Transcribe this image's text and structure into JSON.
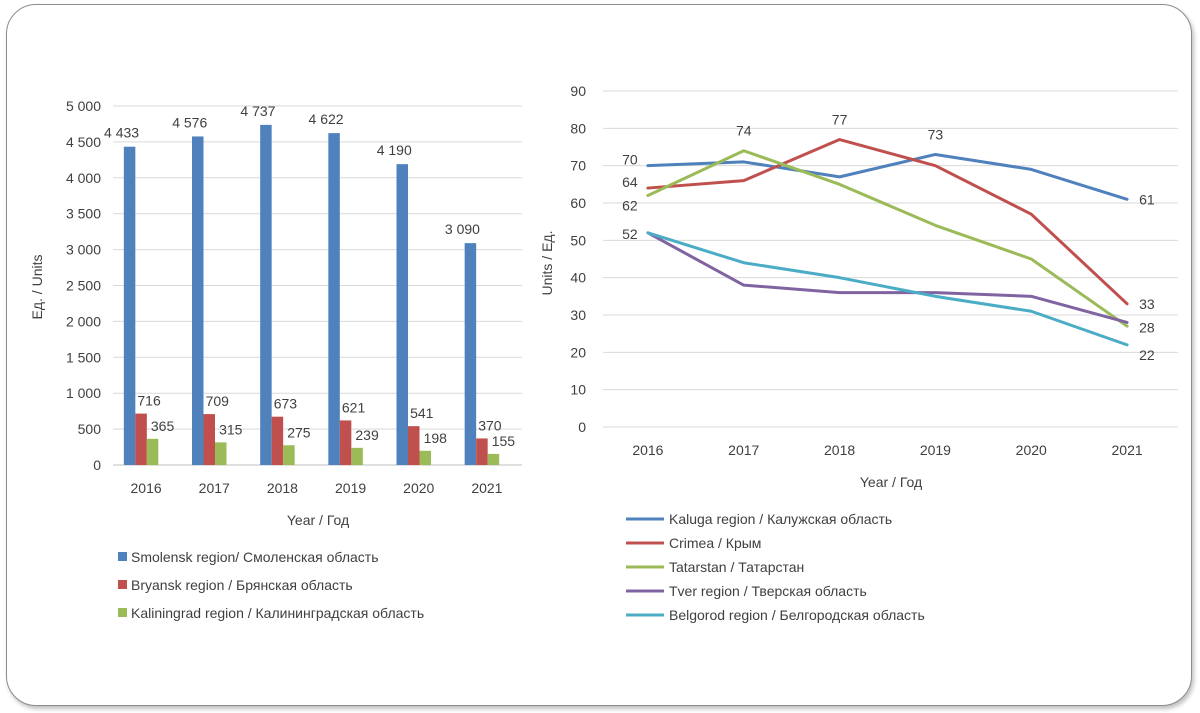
{
  "chart_data": [
    {
      "type": "bar",
      "categories": [
        "2016",
        "2017",
        "2018",
        "2019",
        "2020",
        "2021"
      ],
      "series": [
        {
          "name": "Smolensk region/ Смоленская область",
          "values": [
            4433,
            4576,
            4737,
            4622,
            4190,
            3090
          ],
          "labels": [
            "4 433",
            "4 576",
            "4 737",
            "4 622",
            "4 190",
            "3 090"
          ],
          "color": "#4f81bd"
        },
        {
          "name": "Bryansk region / Брянская область",
          "values": [
            716,
            709,
            673,
            621,
            541,
            370
          ],
          "labels": [
            "716",
            "709",
            "673",
            "621",
            "541",
            "370"
          ],
          "color": "#c0504d"
        },
        {
          "name": "Kaliningrad region / Калининградская область",
          "values": [
            365,
            315,
            275,
            239,
            198,
            155
          ],
          "labels": [
            "365",
            "315",
            "275",
            "239",
            "198",
            "155"
          ],
          "color": "#9bbb59"
        }
      ],
      "xlabel": "Year / Год",
      "ylabel": "Ед. / Units",
      "ylim": [
        0,
        5000
      ],
      "yticks": [
        0,
        500,
        1000,
        1500,
        2000,
        2500,
        3000,
        3500,
        4000,
        4500,
        5000
      ],
      "ytick_labels": [
        "0",
        "500",
        "1 000",
        "1 500",
        "2 000",
        "2 500",
        "3 000",
        "3 500",
        "4 000",
        "4 500",
        "5 000"
      ],
      "grid": true,
      "legend": "bottom"
    },
    {
      "type": "line",
      "categories": [
        "2016",
        "2017",
        "2018",
        "2019",
        "2020",
        "2021"
      ],
      "series": [
        {
          "name": "Kaluga region / Калужская область",
          "values": [
            70,
            71,
            67,
            73,
            69,
            61
          ],
          "color": "#4f81bd"
        },
        {
          "name": "Crimea / Крым",
          "values": [
            64,
            66,
            77,
            70,
            57,
            33
          ],
          "color": "#c0504d"
        },
        {
          "name": "Tatarstan / Татарстан",
          "values": [
            62,
            74,
            65,
            54,
            45,
            27
          ],
          "color": "#9bbb59"
        },
        {
          "name": "Tver region / Тверская область",
          "values": [
            52,
            38,
            36,
            36,
            35,
            28
          ],
          "color": "#8064a2"
        },
        {
          "name": "Belgorod region / Белгородская область",
          "values": [
            52,
            44,
            40,
            35,
            31,
            22
          ],
          "color": "#4bacc6"
        }
      ],
      "data_labels": [
        {
          "series": 0,
          "index": 0,
          "text": "70"
        },
        {
          "series": 1,
          "index": 0,
          "text": "64"
        },
        {
          "series": 2,
          "index": 0,
          "text": "62"
        },
        {
          "series": 3,
          "index": 0,
          "text": "52"
        },
        {
          "series": 2,
          "index": 1,
          "text": "74"
        },
        {
          "series": 1,
          "index": 2,
          "text": "77"
        },
        {
          "series": 0,
          "index": 3,
          "text": "73"
        },
        {
          "series": 0,
          "index": 5,
          "text": "61"
        },
        {
          "series": 1,
          "index": 5,
          "text": "33"
        },
        {
          "series": 3,
          "index": 5,
          "text": "28"
        },
        {
          "series": 4,
          "index": 5,
          "text": "22"
        }
      ],
      "xlabel": "Year / Год",
      "ylabel": "Units / Ед.",
      "ylim": [
        0,
        90
      ],
      "yticks": [
        0,
        10,
        20,
        30,
        40,
        50,
        60,
        70,
        80,
        90
      ],
      "grid": true,
      "legend": "bottom"
    }
  ]
}
